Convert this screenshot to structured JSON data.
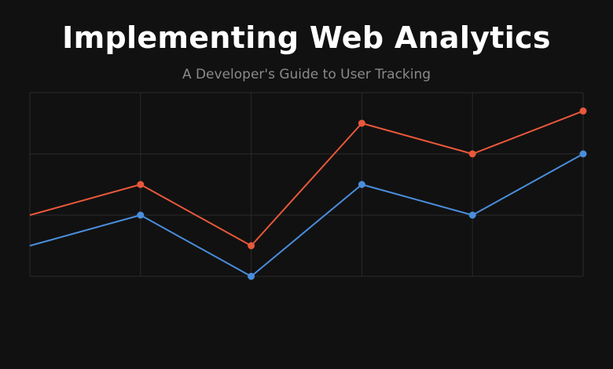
{
  "header": {
    "title": "Implementing Web Analytics",
    "subtitle": "A Developer's Guide to User Tracking"
  },
  "chart_data": {
    "type": "line",
    "title": "Implementing Web Analytics",
    "subtitle": "A Developer's Guide to User Tracking",
    "xlabel": "",
    "ylabel": "",
    "x": [
      0,
      1,
      2,
      3,
      4,
      5
    ],
    "ylim": [
      0,
      6
    ],
    "grid": true,
    "legend": "none",
    "series": [
      {
        "color": "#e8583a",
        "values": [
          2,
          3,
          1,
          5,
          4,
          5.4
        ]
      },
      {
        "color": "#4a8ddb",
        "values": [
          1,
          2,
          0,
          3,
          2,
          4
        ]
      }
    ]
  },
  "colors": {
    "background": "#111111",
    "grid": "#2a2a2a",
    "title": "#ffffff",
    "subtitle": "#8a8a8a"
  }
}
